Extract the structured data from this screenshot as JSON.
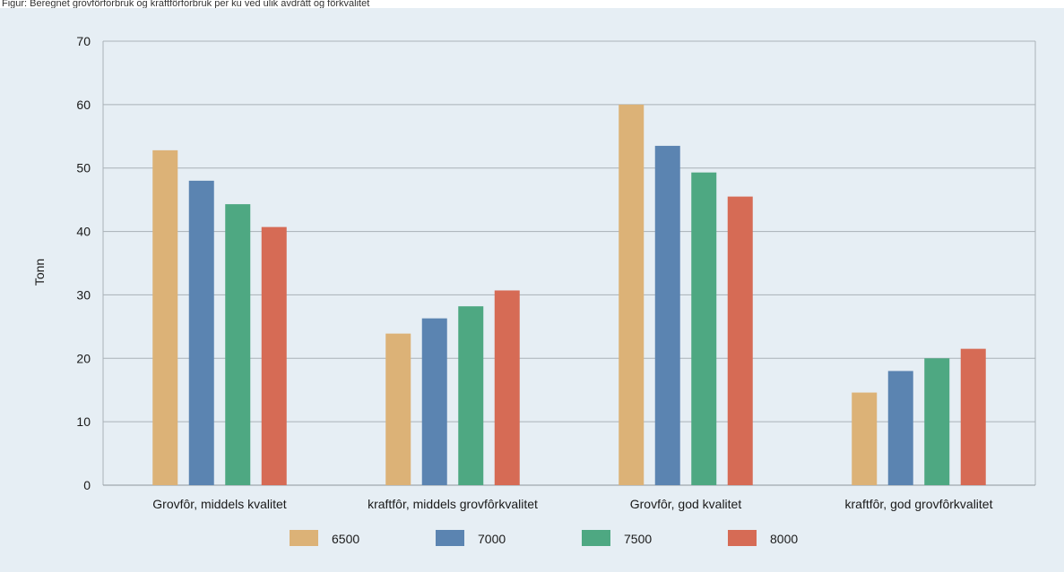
{
  "header_text": "Figur: Beregnet grovfôrforbruk og kraftfôrforbruk per ku ved ulik avdrått og fôrkvalitet",
  "chart_data": {
    "type": "bar",
    "ylabel": "Tonn",
    "xlabel": "",
    "ylim": [
      0,
      70
    ],
    "yticks": [
      0,
      10,
      20,
      30,
      40,
      50,
      60,
      70
    ],
    "grid": true,
    "legend_position": "bottom",
    "categories": [
      "Grovfôr, middels kvalitet",
      "kraftfôr, middels grovfôrkvalitet",
      "Grovfôr, god kvalitet",
      "kraftfôr, god grovfôrkvalitet"
    ],
    "series": [
      {
        "name": "6500",
        "color": "#dcb277",
        "values": [
          52.8,
          23.9,
          60.0,
          14.6
        ]
      },
      {
        "name": "7000",
        "color": "#5b84b1",
        "values": [
          48.0,
          26.3,
          53.5,
          18.0
        ]
      },
      {
        "name": "7500",
        "color": "#4ea882",
        "values": [
          44.3,
          28.2,
          49.3,
          20.0
        ]
      },
      {
        "name": "8000",
        "color": "#d66b55",
        "values": [
          40.7,
          30.7,
          45.5,
          21.5
        ]
      }
    ]
  }
}
